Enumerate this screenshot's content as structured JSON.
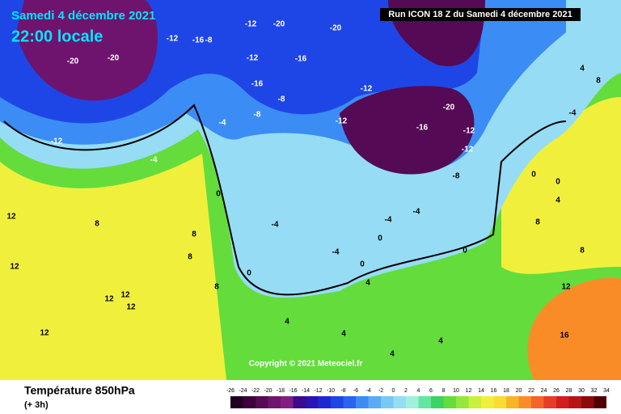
{
  "header": {
    "date": "Samedi 4 décembre 2021",
    "time": "22:00 locale",
    "run": "Run ICON 18 Z du Samedi 4 décembre 2021"
  },
  "copyright": "Copyright © 2021 Meteociel.fr",
  "footer": {
    "title": "Température 850hPa",
    "step": "(+ 3h)"
  },
  "scale": {
    "ticks": [
      -26,
      -24,
      -22,
      -20,
      -18,
      -16,
      -14,
      -12,
      -10,
      -8,
      -6,
      -4,
      -2,
      0,
      2,
      4,
      6,
      8,
      10,
      12,
      14,
      16,
      18,
      20,
      22,
      24,
      26,
      28,
      30,
      32,
      34
    ],
    "colors": [
      "#200020",
      "#3c003c",
      "#550a55",
      "#6e146e",
      "#821e82",
      "#3c0a8c",
      "#2814b4",
      "#1e28d2",
      "#1e46e6",
      "#2864f0",
      "#3c8cf5",
      "#5aaaf5",
      "#78c8f5",
      "#96dcf5",
      "#a0f0dc",
      "#64e6a0",
      "#3cd264",
      "#64dc3c",
      "#96e63c",
      "#c8f03c",
      "#f0f03c",
      "#fadc32",
      "#fab428",
      "#fa8c28",
      "#f56428",
      "#e63c28",
      "#d21e1e",
      "#b41414",
      "#8c0a0a",
      "#500000"
    ]
  },
  "map_labels": [
    "-20",
    "-20",
    "-12",
    "-4",
    "8",
    "12",
    "12",
    "12",
    "12",
    "12",
    "12",
    "8",
    "8",
    "8",
    "0",
    "0",
    "-4",
    "-4",
    "-4",
    "-4",
    "0",
    "0",
    "0",
    "4",
    "4",
    "4",
    "4",
    "4",
    "0",
    "0",
    "4",
    "8",
    "8",
    "12",
    "16",
    "-12",
    "-20",
    "-20",
    "-16",
    "-12",
    "-16",
    "-8",
    "-12",
    "-12",
    "-16",
    "-20",
    "-12",
    "-12",
    "-8",
    "-4",
    "-8",
    "-12",
    "-16",
    "-8",
    "4",
    "8",
    "-4"
  ]
}
